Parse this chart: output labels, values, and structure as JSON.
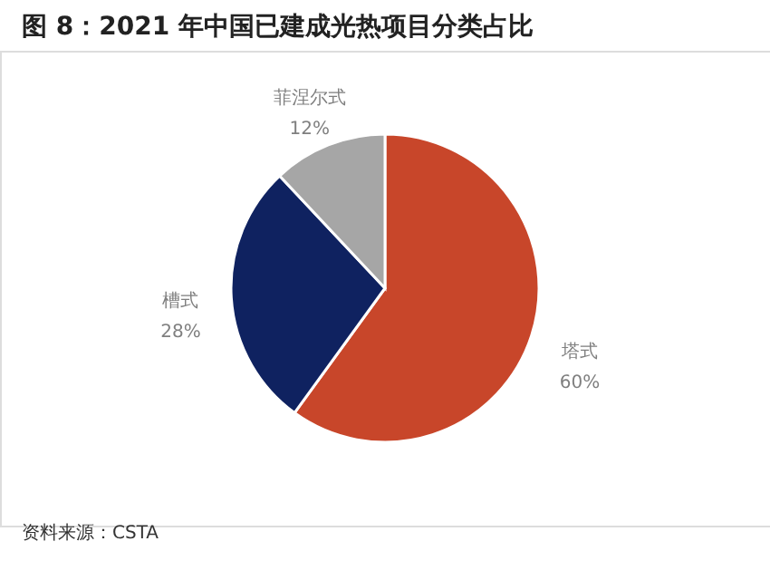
{
  "chart_data": {
    "type": "pie",
    "title": "图 8：2021 年中国已建成光热项目分类占比",
    "categories": [
      "塔式",
      "槽式",
      "菲涅尔式"
    ],
    "values": [
      60,
      28,
      12
    ],
    "value_labels": [
      "60%",
      "28%",
      "12%"
    ],
    "colors": [
      "#c8462a",
      "#0f2260",
      "#a6a6a6"
    ],
    "legend": false,
    "annotations": [
      "资料来源：CSTA"
    ]
  }
}
